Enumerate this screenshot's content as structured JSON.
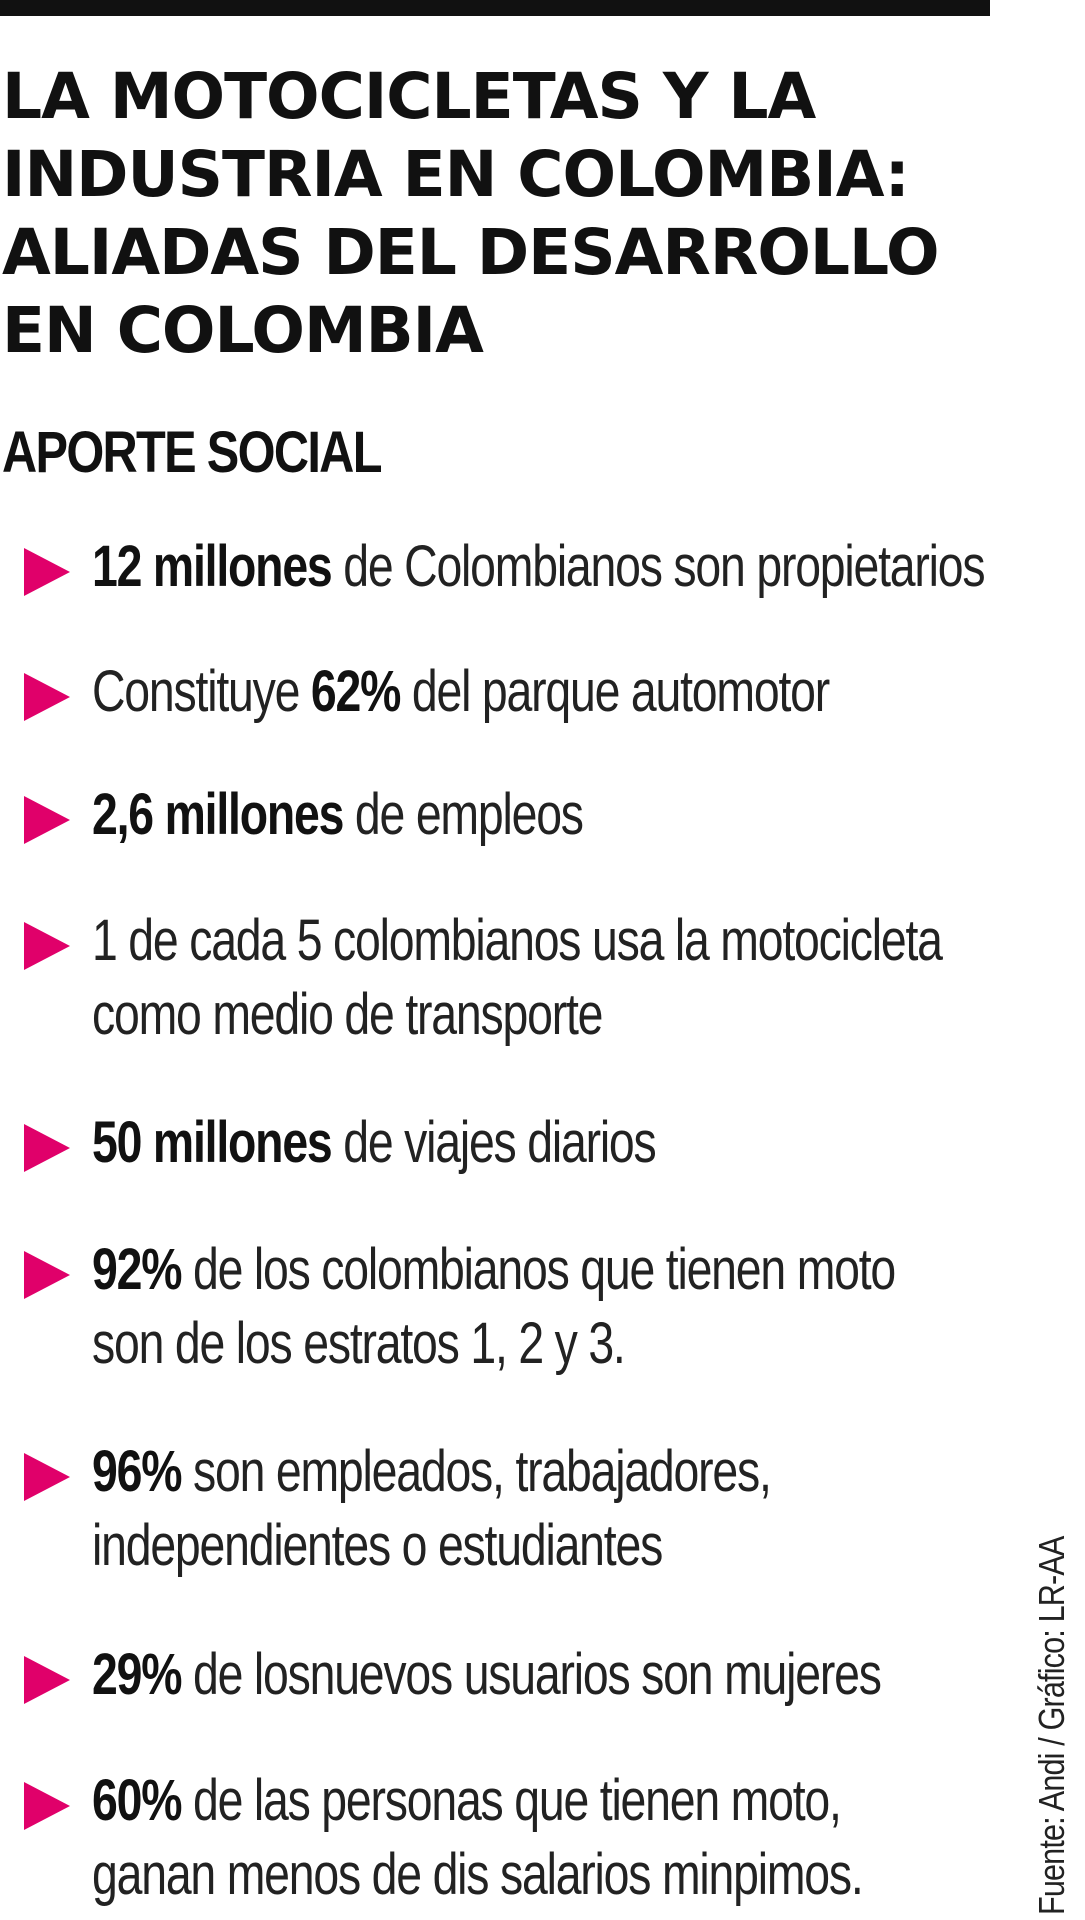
{
  "header": {
    "title_lines": [
      "LA MOTOCICLETAS Y LA",
      "INDUSTRIA EN COLOMBIA:",
      "ALIADAS DEL DESARROLLO",
      "EN COLOMBIA"
    ],
    "subtitle": "APORTE SOCIAL"
  },
  "facts": [
    {
      "lines": [
        {
          "bold": "12 millones",
          "text": " de Colombianos son propietarios"
        }
      ]
    },
    {
      "lines": [
        {
          "pre": "Constituye ",
          "bold": "62%",
          "text": " del parque automotor"
        }
      ]
    },
    {
      "lines": [
        {
          "bold": "2,6 millones",
          "text": " de empleos"
        }
      ]
    },
    {
      "lines": [
        {
          "text": "1 de cada 5 colombianos usa la motocicleta"
        },
        {
          "text": "como medio de transporte"
        }
      ]
    },
    {
      "lines": [
        {
          "bold": "50 millones",
          "text": " de viajes diarios"
        }
      ]
    },
    {
      "lines": [
        {
          "bold": "92%",
          "text": " de los colombianos que tienen moto"
        },
        {
          "text": "son de los estratos 1, 2 y 3."
        }
      ]
    },
    {
      "lines": [
        {
          "bold": "96%",
          "text": " son empleados, trabajadores,"
        },
        {
          "text": "independientes o estudiantes"
        }
      ]
    },
    {
      "lines": [
        {
          "bold": "29%",
          "text": " de losnuevos usuarios son mujeres"
        }
      ]
    },
    {
      "lines": [
        {
          "bold": "60%",
          "text": " de las personas que tienen moto,"
        },
        {
          "text": "ganan menos de dis salarios minpimos."
        }
      ]
    }
  ],
  "credit": "Fuente: Andi / Gráfico: LR-AA",
  "colors": {
    "accent": "#e0006a",
    "text": "#111111",
    "background": "#ffffff"
  },
  "icons": {
    "bullet": "triangle-right-icon"
  }
}
